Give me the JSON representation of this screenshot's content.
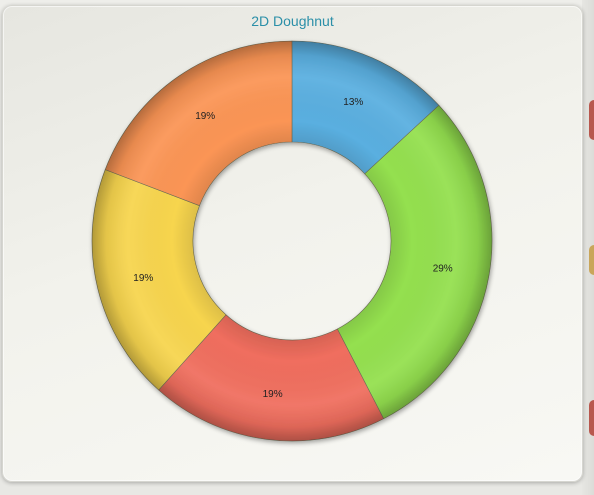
{
  "chart_data": {
    "type": "doughnut",
    "title": "2D Doughnut",
    "slices": [
      {
        "label": "13%",
        "value": 13,
        "color": "#5aafe0"
      },
      {
        "label": "29%",
        "value": 29,
        "color": "#94e04f"
      },
      {
        "label": "19%",
        "value": 19,
        "color": "#f06e5e"
      },
      {
        "label": "19%",
        "value": 19,
        "color": "#f7d54e"
      },
      {
        "label": "19%",
        "value": 19,
        "color": "#fb9555"
      }
    ],
    "start_angle_deg": 0,
    "direction": "clockwise",
    "legend": "none"
  }
}
